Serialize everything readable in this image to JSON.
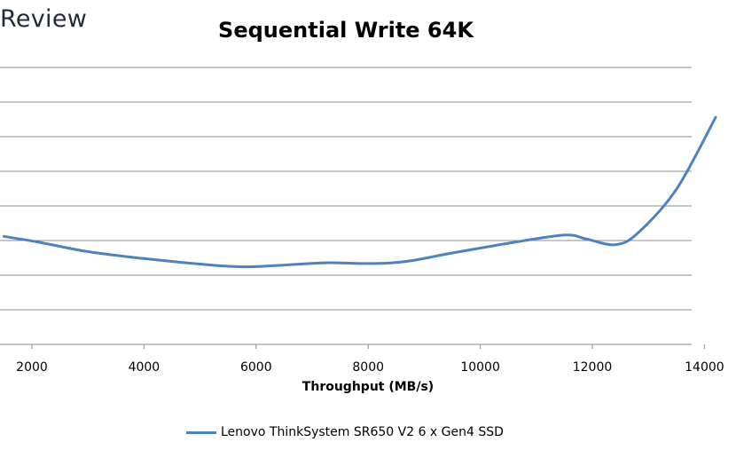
{
  "logo": {
    "text": "Review"
  },
  "chart_data": {
    "type": "line",
    "title": "Sequential Write 64K",
    "xlabel": "Throughput (MB/s)",
    "ylabel": "",
    "xlim": [
      1500,
      14200
    ],
    "x_ticks": [
      2000,
      4000,
      6000,
      8000,
      10000,
      12000,
      14000
    ],
    "x_tick_labels": [
      "2000",
      "4000",
      "6000",
      "8000",
      "10000",
      "12000",
      "14000"
    ],
    "grid": true,
    "legend_position": "bottom",
    "series": [
      {
        "name": "Lenovo ThinkSystem SR650 V2 6 x Gen4 SSD",
        "color": "#4f81bd",
        "points": [
          [
            1500,
            0.39
          ],
          [
            2100,
            0.37
          ],
          [
            3000,
            0.335
          ],
          [
            4000,
            0.31
          ],
          [
            5000,
            0.29
          ],
          [
            5800,
            0.28
          ],
          [
            6800,
            0.29
          ],
          [
            7300,
            0.295
          ],
          [
            8100,
            0.292
          ],
          [
            8700,
            0.3
          ],
          [
            9500,
            0.33
          ],
          [
            10500,
            0.365
          ],
          [
            11500,
            0.395
          ],
          [
            11900,
            0.38
          ],
          [
            12400,
            0.36
          ],
          [
            12800,
            0.4
          ],
          [
            13500,
            0.56
          ],
          [
            14200,
            0.82
          ]
        ]
      }
    ]
  }
}
